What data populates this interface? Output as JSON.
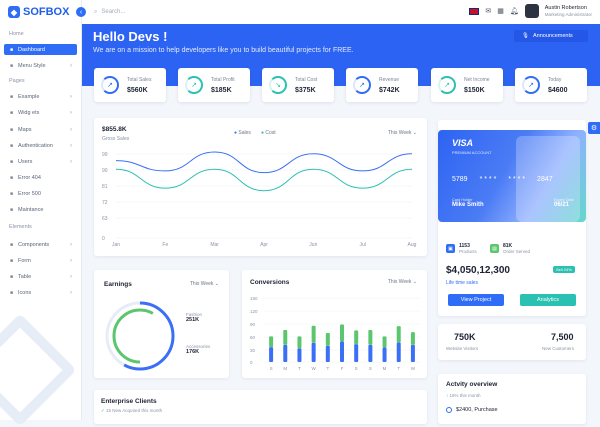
{
  "app": {
    "brand": "SOFBOX",
    "search_placeholder": "Search..."
  },
  "sidebar": {
    "sections": [
      {
        "title": "Home",
        "items": [
          {
            "label": "Dashboard",
            "icon": "grid-icon",
            "active": true
          },
          {
            "label": "Menu Style",
            "icon": "layout-icon",
            "chevron": true
          }
        ]
      },
      {
        "title": "Pages",
        "items": [
          {
            "label": "Example",
            "icon": "document-icon",
            "chevron": true
          },
          {
            "label": "Widg ets",
            "icon": "widget-icon",
            "chevron": true
          },
          {
            "label": "Maps",
            "icon": "map-pin-icon",
            "chevron": true
          },
          {
            "label": "Authentication",
            "icon": "lock-icon",
            "chevron": true
          },
          {
            "label": "Users",
            "icon": "user-icon",
            "chevron": true
          },
          {
            "label": "Error 404",
            "icon": "warning-icon"
          },
          {
            "label": "Error 500",
            "icon": "warning-icon"
          },
          {
            "label": "Maintance",
            "icon": "tools-icon"
          }
        ]
      },
      {
        "title": "Elements",
        "items": [
          {
            "label": "Components",
            "icon": "components-icon",
            "chevron": true
          },
          {
            "label": "Form",
            "icon": "form-icon",
            "chevron": true
          },
          {
            "label": "Table",
            "icon": "table-icon",
            "chevron": true
          },
          {
            "label": "Icons",
            "icon": "info-icon",
            "chevron": true
          }
        ]
      }
    ]
  },
  "header": {
    "user_name": "Austin Robertson",
    "user_role": "Marketing Administrator"
  },
  "hero": {
    "title": "Hello Devs !",
    "subtitle": "We are on a mission to help developers like you to build beautiful projects for FREE.",
    "announcements": "Announcements"
  },
  "stats": [
    {
      "label": "Total Sales",
      "value": "$560K",
      "color": "#2f6df6"
    },
    {
      "label": "Total Profit",
      "value": "$185K",
      "color": "#2ac0b2"
    },
    {
      "label": "Total Cost",
      "value": "$375K",
      "color": "#2ac0b2"
    },
    {
      "label": "Revenue",
      "value": "$742K",
      "color": "#2f6df6"
    },
    {
      "label": "Net Income",
      "value": "$150K",
      "color": "#2ac0b2"
    },
    {
      "label": "Today",
      "value": "$4600",
      "color": "#2f6df6"
    }
  ],
  "gross": {
    "value": "$855.8K",
    "label": "Gross Sales",
    "filter": "This Week"
  },
  "chart_data": [
    {
      "type": "line",
      "categories": [
        "Jan",
        "Fe",
        "Mar",
        "Apr",
        "Jun",
        "Jul",
        "Aug"
      ],
      "series": [
        {
          "name": "Sales",
          "color": "#3b6ff5",
          "values": [
            90,
            78,
            100,
            76,
            98,
            78,
            98
          ]
        },
        {
          "name": "Cost",
          "color": "#2ac0b2",
          "values": [
            80,
            58,
            80,
            55,
            80,
            58,
            80
          ]
        }
      ],
      "y_ticks": [
        99,
        90,
        81,
        72,
        63,
        0
      ],
      "ylim": [
        0,
        100
      ]
    },
    {
      "type": "bar",
      "title": "Conversions",
      "categories": [
        "S",
        "M",
        "T",
        "W",
        "T",
        "F",
        "S",
        "S",
        "M",
        "T",
        "W"
      ],
      "series": [
        {
          "name": "blue",
          "color": "#3b6ff5",
          "values": [
            35,
            40,
            32,
            45,
            38,
            48,
            42,
            40,
            34,
            46,
            40
          ]
        },
        {
          "name": "green",
          "color": "#5cc66e",
          "values": [
            25,
            35,
            28,
            40,
            30,
            40,
            32,
            35,
            26,
            38,
            30
          ]
        }
      ],
      "y_ticks": [
        150,
        120,
        90,
        60,
        30,
        0
      ],
      "ylim": [
        0,
        150
      ]
    },
    {
      "type": "pie",
      "title": "Earnings",
      "series": [
        {
          "name": "Fashion",
          "value": 251,
          "color": "#3b6ff5"
        },
        {
          "name": "Accessories",
          "value": 176,
          "color": "#5cc66e"
        }
      ]
    }
  ],
  "earnings": {
    "title": "Earnings",
    "filter": "This Week",
    "items": [
      {
        "label": "Fashion",
        "value": "251K"
      },
      {
        "label": "Accessories",
        "value": "176K"
      }
    ]
  },
  "conversions": {
    "title": "Conversions",
    "filter": "This Week"
  },
  "card": {
    "brand": "VISA",
    "type": "PREMIUM ACCOUNT",
    "number": [
      "5789",
      "* * * *",
      "* * * *",
      "2847"
    ],
    "holder_label": "Card Holder",
    "holder": "Mike Smith",
    "expire_label": "Expire Date",
    "expire": "06/21"
  },
  "account": {
    "products_count": "1153",
    "products_label": "Products",
    "orders_count": "81K",
    "orders_label": "Order Served",
    "balance": "$4,050,12,300",
    "link": "Life time sales",
    "badge": "Sell 24%",
    "btn_view": "View Project",
    "btn_analytics": "Analytics"
  },
  "visitors": {
    "value": "750K",
    "label": "Website Visitors",
    "customers_value": "7,500",
    "customers_label": "New Customers"
  },
  "enterprise": {
    "title": "Enterprise Clients",
    "note": "15 New Acquired this month"
  },
  "activity": {
    "title": "Actvity overview",
    "sub": "16% this month",
    "item": "$2400, Purchase"
  }
}
